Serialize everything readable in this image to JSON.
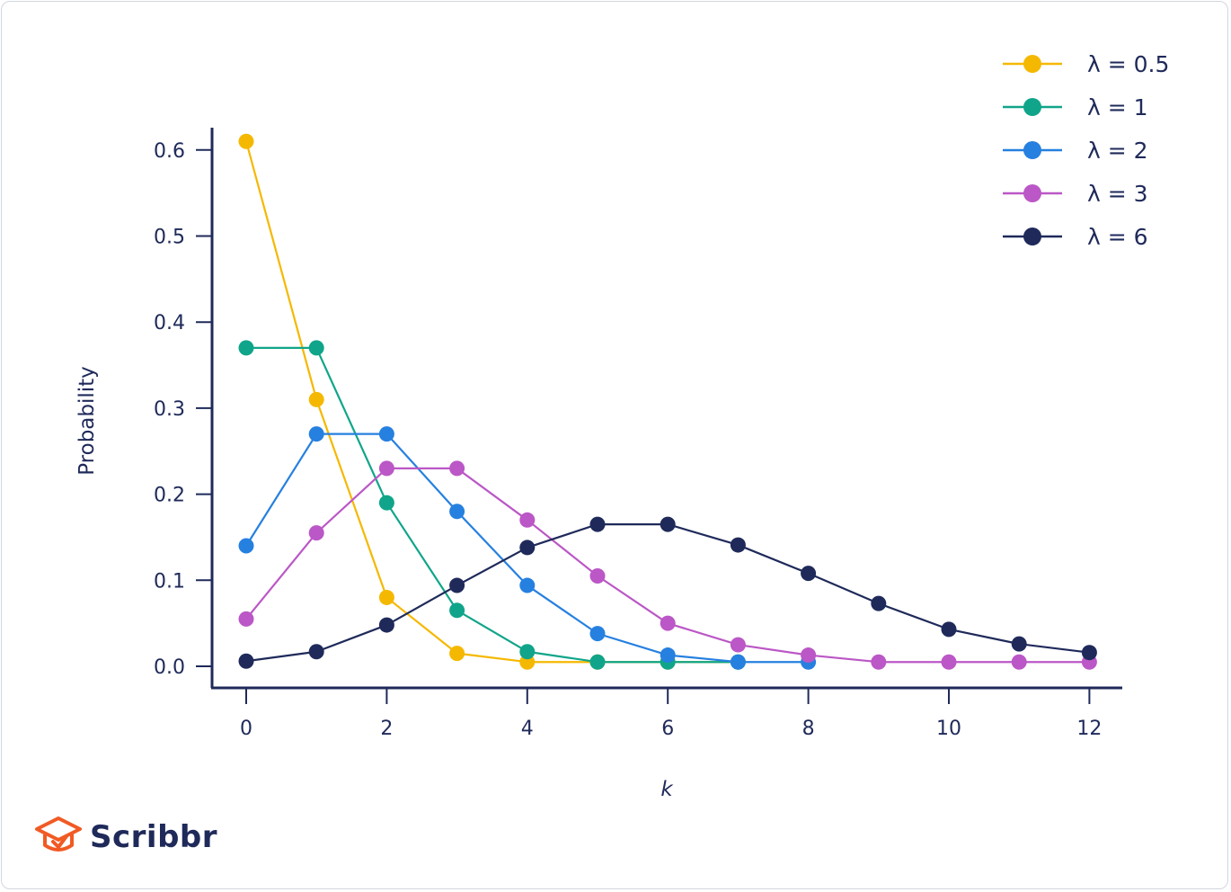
{
  "brand": {
    "name": "Scribbr",
    "logo_icon": "graduation-cap-icon",
    "logo_color": "#f15a24"
  },
  "chart_data": {
    "type": "line",
    "title": "",
    "xlabel": "k",
    "ylabel": "Probability",
    "xlim": [
      0,
      12
    ],
    "ylim": [
      0,
      0.6
    ],
    "x_ticks": [
      0,
      2,
      4,
      6,
      8,
      10,
      12
    ],
    "y_ticks": [
      0.0,
      0.1,
      0.2,
      0.3,
      0.4,
      0.5,
      0.6
    ],
    "y_tick_labels": [
      "0.0",
      "0.1",
      "0.2",
      "0.3",
      "0.4",
      "0.5",
      "0.6"
    ],
    "grid": false,
    "legend_position": "top-right",
    "x": [
      0,
      1,
      2,
      3,
      4,
      5,
      6,
      7,
      8,
      9,
      10,
      11,
      12
    ],
    "series": [
      {
        "name": "λ = 0.5",
        "color": "#f5b800",
        "x": [
          0,
          1,
          2,
          3,
          4,
          5,
          6,
          7
        ],
        "values": [
          0.61,
          0.31,
          0.08,
          0.015,
          0.005,
          0.005,
          0.005,
          0.005
        ]
      },
      {
        "name": "λ = 1",
        "color": "#10a58a",
        "x": [
          0,
          1,
          2,
          3,
          4,
          5,
          6,
          7
        ],
        "values": [
          0.37,
          0.37,
          0.19,
          0.065,
          0.017,
          0.005,
          0.005,
          0.005
        ]
      },
      {
        "name": "λ = 2",
        "color": "#2680e0",
        "x": [
          0,
          1,
          2,
          3,
          4,
          5,
          6,
          7,
          8
        ],
        "values": [
          0.14,
          0.27,
          0.27,
          0.18,
          0.094,
          0.038,
          0.013,
          0.005,
          0.005
        ]
      },
      {
        "name": "λ = 3",
        "color": "#bb57c6",
        "x": [
          0,
          1,
          2,
          3,
          4,
          5,
          6,
          7,
          8,
          9,
          10,
          11,
          12
        ],
        "values": [
          0.055,
          0.155,
          0.23,
          0.23,
          0.17,
          0.105,
          0.05,
          0.025,
          0.013,
          0.005,
          0.005,
          0.005,
          0.005
        ]
      },
      {
        "name": "λ = 6",
        "color": "#1f2a5a",
        "x": [
          0,
          1,
          2,
          3,
          4,
          5,
          6,
          7,
          8,
          9,
          10,
          11,
          12
        ],
        "values": [
          0.006,
          0.017,
          0.048,
          0.094,
          0.138,
          0.165,
          0.165,
          0.141,
          0.108,
          0.073,
          0.043,
          0.026,
          0.016
        ]
      }
    ]
  }
}
